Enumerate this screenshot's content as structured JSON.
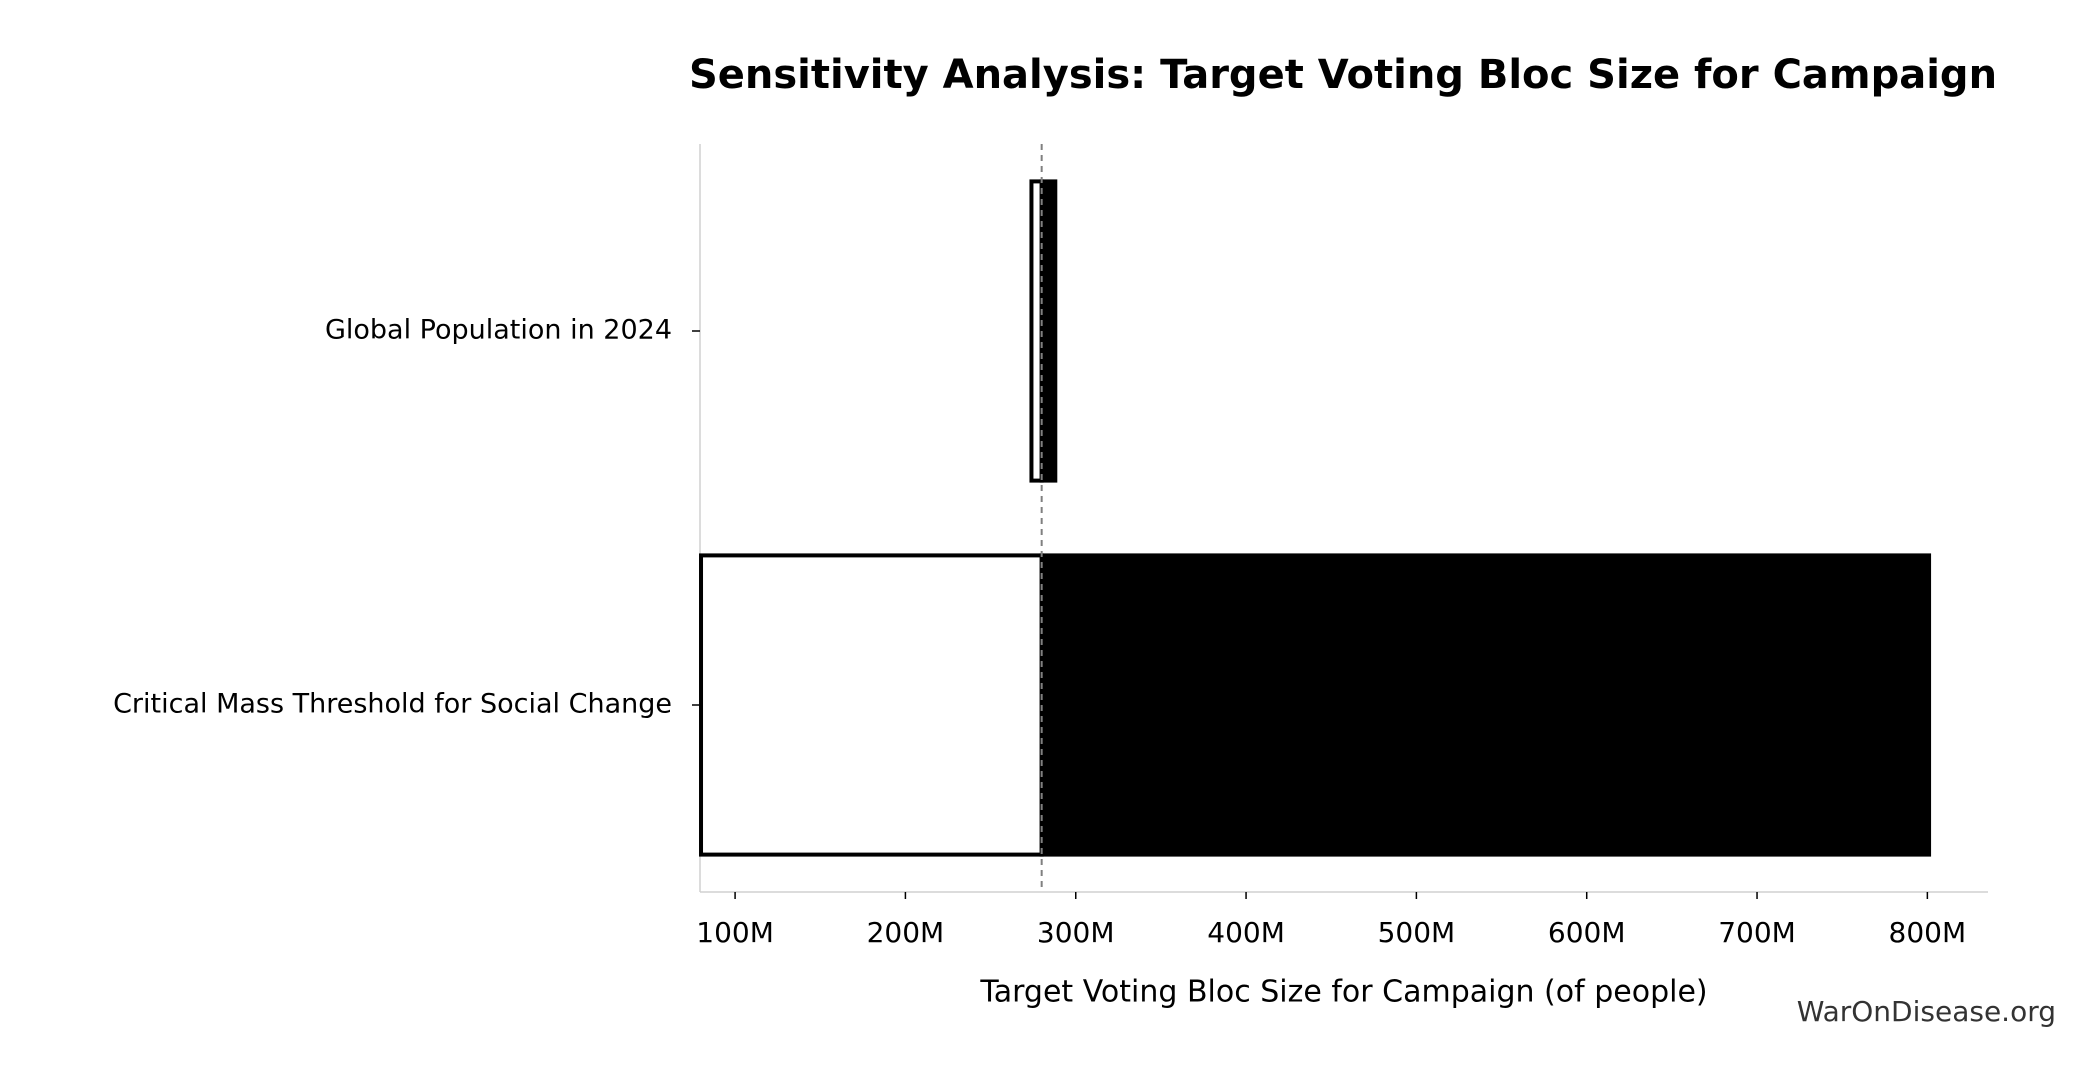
{
  "chart_data": {
    "type": "tornado",
    "title": "Sensitivity Analysis: Target Voting Bloc Size for Campaign",
    "x_label": "Target Voting Bloc Size for Campaign (of people)",
    "watermark": "WarOnDisease.org",
    "categories": [
      "Global Population in 2024",
      "Critical Mass Threshold for Social Change"
    ],
    "baseline": 280000000,
    "low": [
      274000000,
      80000000
    ],
    "high": [
      288000000,
      801000000
    ],
    "low_color": "#ffffff",
    "high_color": "#000000",
    "edge_color": "#000000",
    "xlim": [
      79400000,
      835600000
    ],
    "xticks": [
      {
        "value": 100000000,
        "label": "100M"
      },
      {
        "value": 200000000,
        "label": "200M"
      },
      {
        "value": 300000000,
        "label": "300M"
      },
      {
        "value": 400000000,
        "label": "400M"
      },
      {
        "value": 500000000,
        "label": "500M"
      },
      {
        "value": 600000000,
        "label": "600M"
      },
      {
        "value": 700000000,
        "label": "700M"
      },
      {
        "value": 800000000,
        "label": "800M"
      }
    ]
  }
}
